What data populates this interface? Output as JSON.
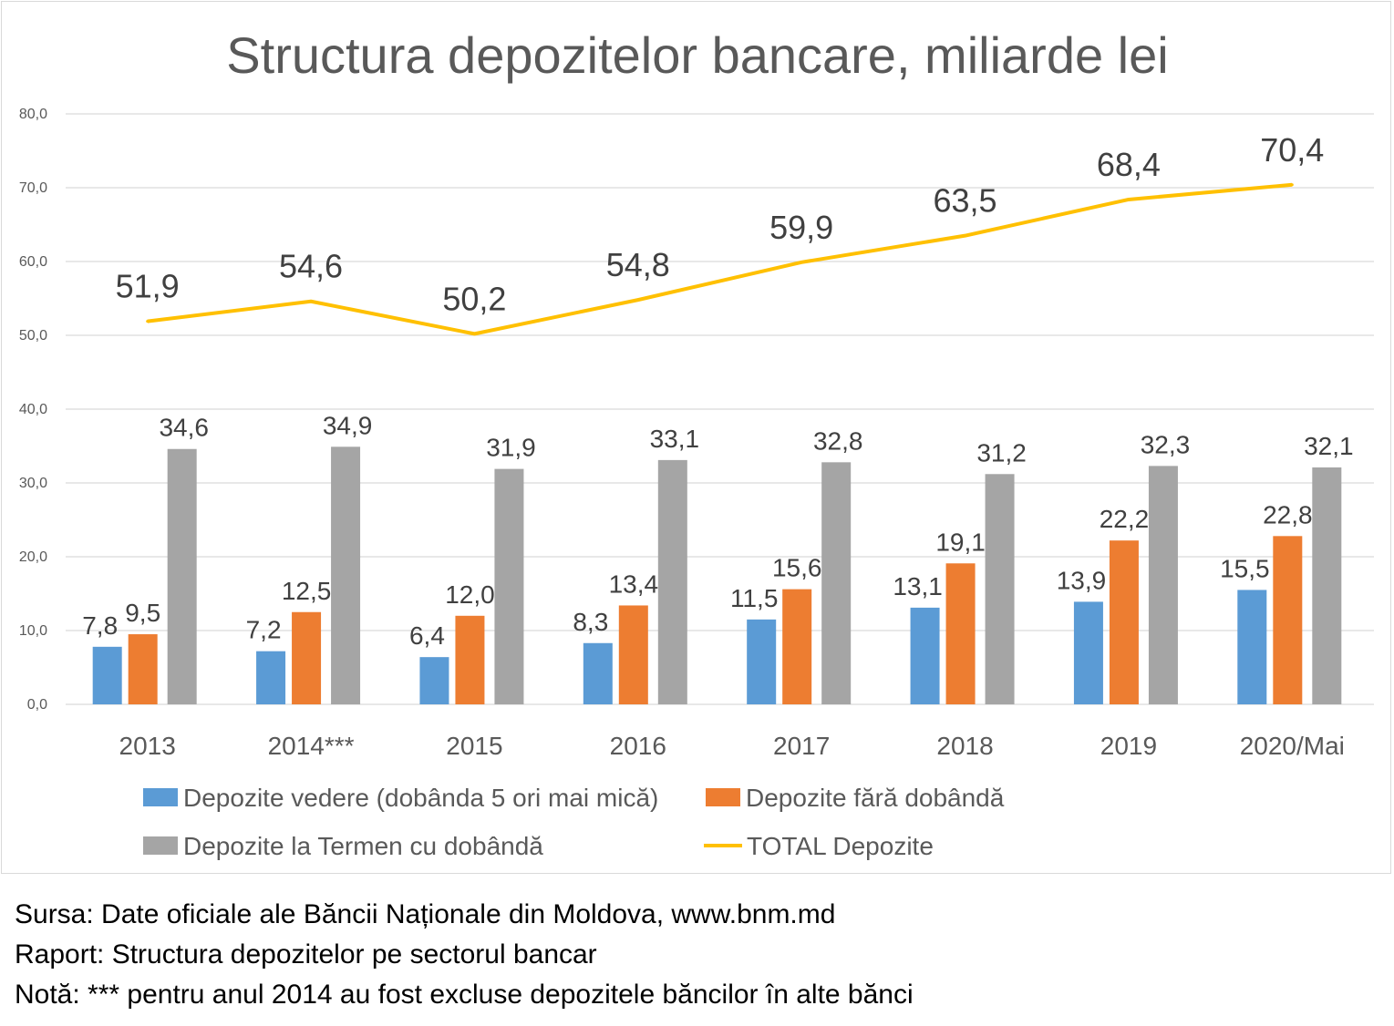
{
  "colors": {
    "vedere": "#5b9bd5",
    "fara": "#ed7d31",
    "termen": "#a5a5a5",
    "total": "#ffc000",
    "grid": "#d9d9d9",
    "text": "#595959",
    "title": "#595959"
  },
  "chart_data": {
    "type": "bar",
    "title": "Structura depozitelor bancare, miliarde lei",
    "xlabel": "",
    "ylabel": "",
    "ylim": [
      0,
      80
    ],
    "yticks": [
      "0,0",
      "10,0",
      "20,0",
      "30,0",
      "40,0",
      "50,0",
      "60,0",
      "70,0",
      "80,0"
    ],
    "grid": true,
    "legend_position": "bottom",
    "categories": [
      "2013",
      "2014***",
      "2015",
      "2016",
      "2017",
      "2018",
      "2019",
      "2020/Mai"
    ],
    "series": [
      {
        "name": "Depozite vedere (dobânda 5 ori mai mică)",
        "type": "bar",
        "color": "#5b9bd5",
        "values": [
          7.8,
          7.2,
          6.4,
          8.3,
          11.5,
          13.1,
          13.9,
          15.5
        ],
        "labels": [
          "7,8",
          "7,2",
          "6,4",
          "8,3",
          "11,5",
          "13,1",
          "13,9",
          "15,5"
        ]
      },
      {
        "name": "Depozite fără dobândă",
        "type": "bar",
        "color": "#ed7d31",
        "values": [
          9.5,
          12.5,
          12.0,
          13.4,
          15.6,
          19.1,
          22.2,
          22.8
        ],
        "labels": [
          "9,5",
          "12,5",
          "12,0",
          "13,4",
          "15,6",
          "19,1",
          "22,2",
          "22,8"
        ]
      },
      {
        "name": "Depozite la Termen cu dobândă",
        "type": "bar",
        "color": "#a5a5a5",
        "values": [
          34.6,
          34.9,
          31.9,
          33.1,
          32.8,
          31.2,
          32.3,
          32.1
        ],
        "labels": [
          "34,6",
          "34,9",
          "31,9",
          "33,1",
          "32,8",
          "31,2",
          "32,3",
          "32,1"
        ]
      },
      {
        "name": "TOTAL Depozite",
        "type": "line",
        "color": "#ffc000",
        "values": [
          51.9,
          54.6,
          50.2,
          54.8,
          59.9,
          63.5,
          68.4,
          70.4
        ],
        "labels": [
          "51,9",
          "54,6",
          "50,2",
          "54,8",
          "59,9",
          "63,5",
          "68,4",
          "70,4"
        ]
      }
    ]
  },
  "notes": {
    "source": "Sursa: Date oficiale ale Băncii Naționale din Moldova, www.bnm.md",
    "report": "Raport: Structura depozitelor pe sectorul bancar",
    "note": "Notă: *** pentru anul 2014 au fost excluse depozitele băncilor în alte bănci"
  }
}
